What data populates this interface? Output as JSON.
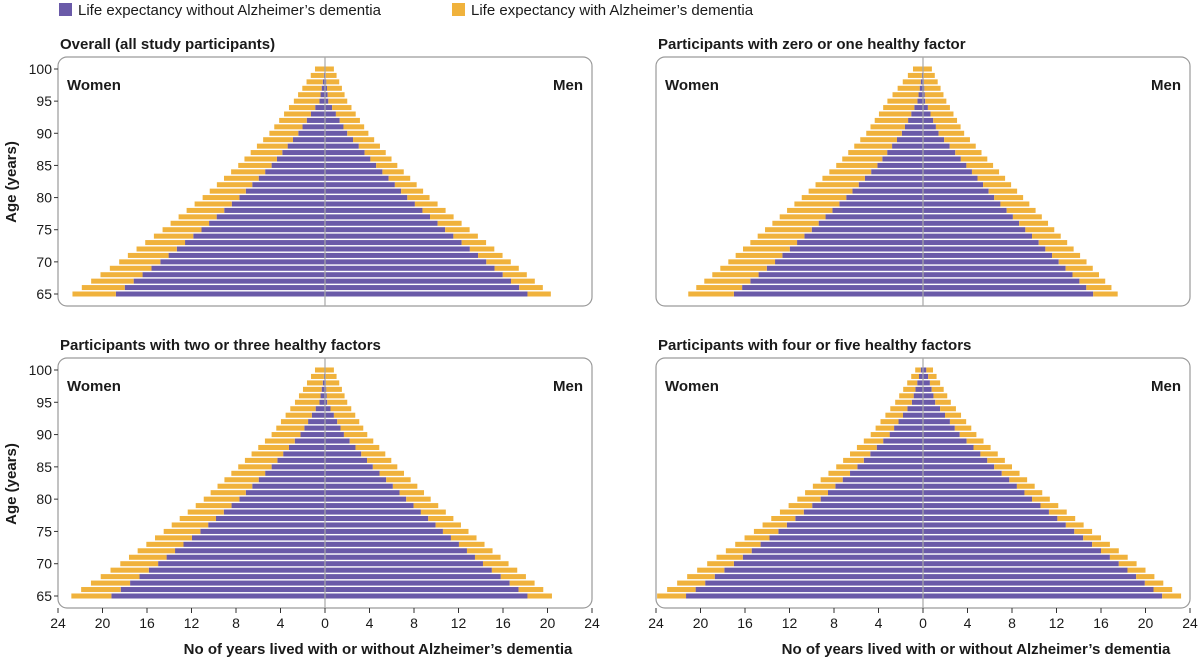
{
  "legend": {
    "without_label": "Life expectancy without Alzheimer’s dementia",
    "with_label": "Life expectancy with Alzheimer’s dementia"
  },
  "colors": {
    "without": "#6a5aa8",
    "with": "#f0b23c",
    "frame": "#9a9a9a",
    "axis": "#a8a8a8"
  },
  "ylabel": "Age (years)",
  "xlabel": "No of years lived with or without Alzheimer’s dementia",
  "side_labels": {
    "left": "Women",
    "right": "Men"
  },
  "chart_data": [
    {
      "type": "bar",
      "orientation": "horizontal-population-pyramid",
      "title": "Overall (all study participants)",
      "ylim": [
        65,
        100
      ],
      "xlim": [
        -24,
        24
      ],
      "yticks": [
        65,
        70,
        75,
        80,
        85,
        90,
        95,
        100
      ],
      "xticks": [
        -24,
        -20,
        -16,
        -12,
        -8,
        -4,
        0,
        4,
        8,
        12,
        16,
        20,
        24
      ],
      "xticklabels": [
        "24",
        "20",
        "16",
        "12",
        "8",
        "4",
        "0",
        "4",
        "8",
        "12",
        "16",
        "20",
        "24"
      ],
      "series": [
        {
          "name": "Women – without",
          "anchors": {
            "ages": [
              65,
              70,
              75,
              80,
              85,
              90,
              95,
              100
            ],
            "values": [
              18.8,
              14.8,
              11.1,
              7.7,
              4.8,
              2.4,
              0.5,
              0.0
            ]
          }
        },
        {
          "name": "Women – with",
          "anchors": {
            "ages": [
              65,
              70,
              75,
              80,
              85,
              90,
              95,
              100
            ],
            "values": [
              3.9,
              3.7,
              3.5,
              3.3,
              3.0,
              2.6,
              2.3,
              0.9
            ]
          }
        },
        {
          "name": "Men – without",
          "anchors": {
            "ages": [
              65,
              70,
              75,
              80,
              85,
              90,
              95,
              100
            ],
            "values": [
              18.2,
              14.5,
              10.8,
              7.4,
              4.6,
              2.0,
              0.3,
              0.0
            ]
          }
        },
        {
          "name": "Men – with",
          "anchors": {
            "ages": [
              65,
              70,
              75,
              80,
              85,
              90,
              95,
              100
            ],
            "values": [
              2.1,
              2.2,
              2.2,
              2.0,
              1.9,
              1.9,
              1.7,
              0.8
            ]
          }
        }
      ]
    },
    {
      "type": "bar",
      "orientation": "horizontal-population-pyramid",
      "title": "Participants with zero or one healthy factor",
      "ylim": [
        65,
        100
      ],
      "xlim": [
        -24,
        24
      ],
      "yticks": [
        65,
        70,
        75,
        80,
        85,
        90,
        95,
        100
      ],
      "xticks": [
        -24,
        -20,
        -16,
        -12,
        -8,
        -4,
        0,
        4,
        8,
        12,
        16,
        20,
        24
      ],
      "xticklabels": [
        "24",
        "20",
        "16",
        "12",
        "8",
        "4",
        "0",
        "4",
        "8",
        "12",
        "16",
        "20",
        "24"
      ],
      "series": [
        {
          "name": "Women – without",
          "anchors": {
            "ages": [
              65,
              70,
              75,
              80,
              85,
              90,
              95,
              100
            ],
            "values": [
              17.0,
              13.3,
              10.0,
              6.9,
              4.1,
              1.9,
              0.5,
              0.0
            ]
          }
        },
        {
          "name": "Women – with",
          "anchors": {
            "ages": [
              65,
              70,
              75,
              80,
              85,
              90,
              95,
              100
            ],
            "values": [
              4.1,
              4.2,
              4.2,
              4.0,
              3.7,
              3.2,
              2.7,
              0.9
            ]
          }
        },
        {
          "name": "Men – without",
          "anchors": {
            "ages": [
              65,
              70,
              75,
              80,
              85,
              90,
              95,
              100
            ],
            "values": [
              15.3,
              12.2,
              9.2,
              6.4,
              3.9,
              1.4,
              0.2,
              0.0
            ]
          }
        },
        {
          "name": "Men – with",
          "anchors": {
            "ages": [
              65,
              70,
              75,
              80,
              85,
              90,
              95,
              100
            ],
            "values": [
              2.2,
              2.5,
              2.6,
              2.6,
              2.4,
              2.3,
              1.9,
              0.8
            ]
          }
        }
      ]
    },
    {
      "type": "bar",
      "orientation": "horizontal-population-pyramid",
      "title": "Participants with two or three healthy factors",
      "ylim": [
        65,
        100
      ],
      "xlim": [
        -24,
        24
      ],
      "yticks": [
        65,
        70,
        75,
        80,
        85,
        90,
        95,
        100
      ],
      "xticks": [
        -24,
        -20,
        -16,
        -12,
        -8,
        -4,
        0,
        4,
        8,
        12,
        16,
        20,
        24
      ],
      "xticklabels": [
        "24",
        "20",
        "16",
        "12",
        "8",
        "4",
        "0",
        "4",
        "8",
        "12",
        "16",
        "20",
        "24"
      ],
      "series": [
        {
          "name": "Women – without",
          "anchors": {
            "ages": [
              65,
              70,
              75,
              80,
              85,
              90,
              95,
              100
            ],
            "values": [
              19.2,
              15.0,
              11.2,
              7.7,
              4.8,
              2.2,
              0.5,
              0.0
            ]
          }
        },
        {
          "name": "Women – with",
          "anchors": {
            "ages": [
              65,
              70,
              75,
              80,
              85,
              90,
              95,
              100
            ],
            "values": [
              3.6,
              3.4,
              3.3,
              3.2,
              3.0,
              2.6,
              2.2,
              0.9
            ]
          }
        },
        {
          "name": "Men – without",
          "anchors": {
            "ages": [
              65,
              70,
              75,
              80,
              85,
              90,
              95,
              100
            ],
            "values": [
              18.2,
              14.2,
              10.6,
              7.3,
              4.3,
              1.7,
              0.2,
              0.0
            ]
          }
        },
        {
          "name": "Men – with",
          "anchors": {
            "ages": [
              65,
              70,
              75,
              80,
              85,
              90,
              95,
              100
            ],
            "values": [
              2.2,
              2.3,
              2.3,
              2.2,
              2.2,
              2.1,
              1.8,
              0.8
            ]
          }
        }
      ]
    },
    {
      "type": "bar",
      "orientation": "horizontal-population-pyramid",
      "title": "Participants with four or five healthy factors",
      "ylim": [
        65,
        100
      ],
      "xlim": [
        -24,
        24
      ],
      "yticks": [
        65,
        70,
        75,
        80,
        85,
        90,
        95,
        100
      ],
      "xticks": [
        -24,
        -20,
        -16,
        -12,
        -8,
        -4,
        0,
        4,
        8,
        12,
        16,
        20,
        24
      ],
      "xticklabels": [
        "24",
        "20",
        "16",
        "12",
        "8",
        "4",
        "0",
        "4",
        "8",
        "12",
        "16",
        "20",
        "24"
      ],
      "series": [
        {
          "name": "Women – without",
          "anchors": {
            "ages": [
              65,
              70,
              75,
              80,
              85,
              90,
              95,
              100
            ],
            "values": [
              21.3,
              17.0,
              13.0,
              9.2,
              5.9,
              3.0,
              1.0,
              0.2
            ]
          }
        },
        {
          "name": "Women – with",
          "anchors": {
            "ages": [
              65,
              70,
              75,
              80,
              85,
              90,
              95,
              100
            ],
            "values": [
              2.6,
              2.4,
              2.2,
              2.1,
              1.9,
              1.7,
              1.5,
              0.5
            ]
          }
        },
        {
          "name": "Men – without",
          "anchors": {
            "ages": [
              65,
              70,
              75,
              80,
              85,
              90,
              95,
              100
            ],
            "values": [
              21.5,
              17.6,
              13.6,
              9.8,
              6.4,
              3.3,
              1.1,
              0.3
            ]
          }
        },
        {
          "name": "Men – with",
          "anchors": {
            "ages": [
              65,
              70,
              75,
              80,
              85,
              90,
              95,
              100
            ],
            "values": [
              1.7,
              1.6,
              1.6,
              1.6,
              1.6,
              1.5,
              1.4,
              0.6
            ]
          }
        }
      ]
    }
  ]
}
